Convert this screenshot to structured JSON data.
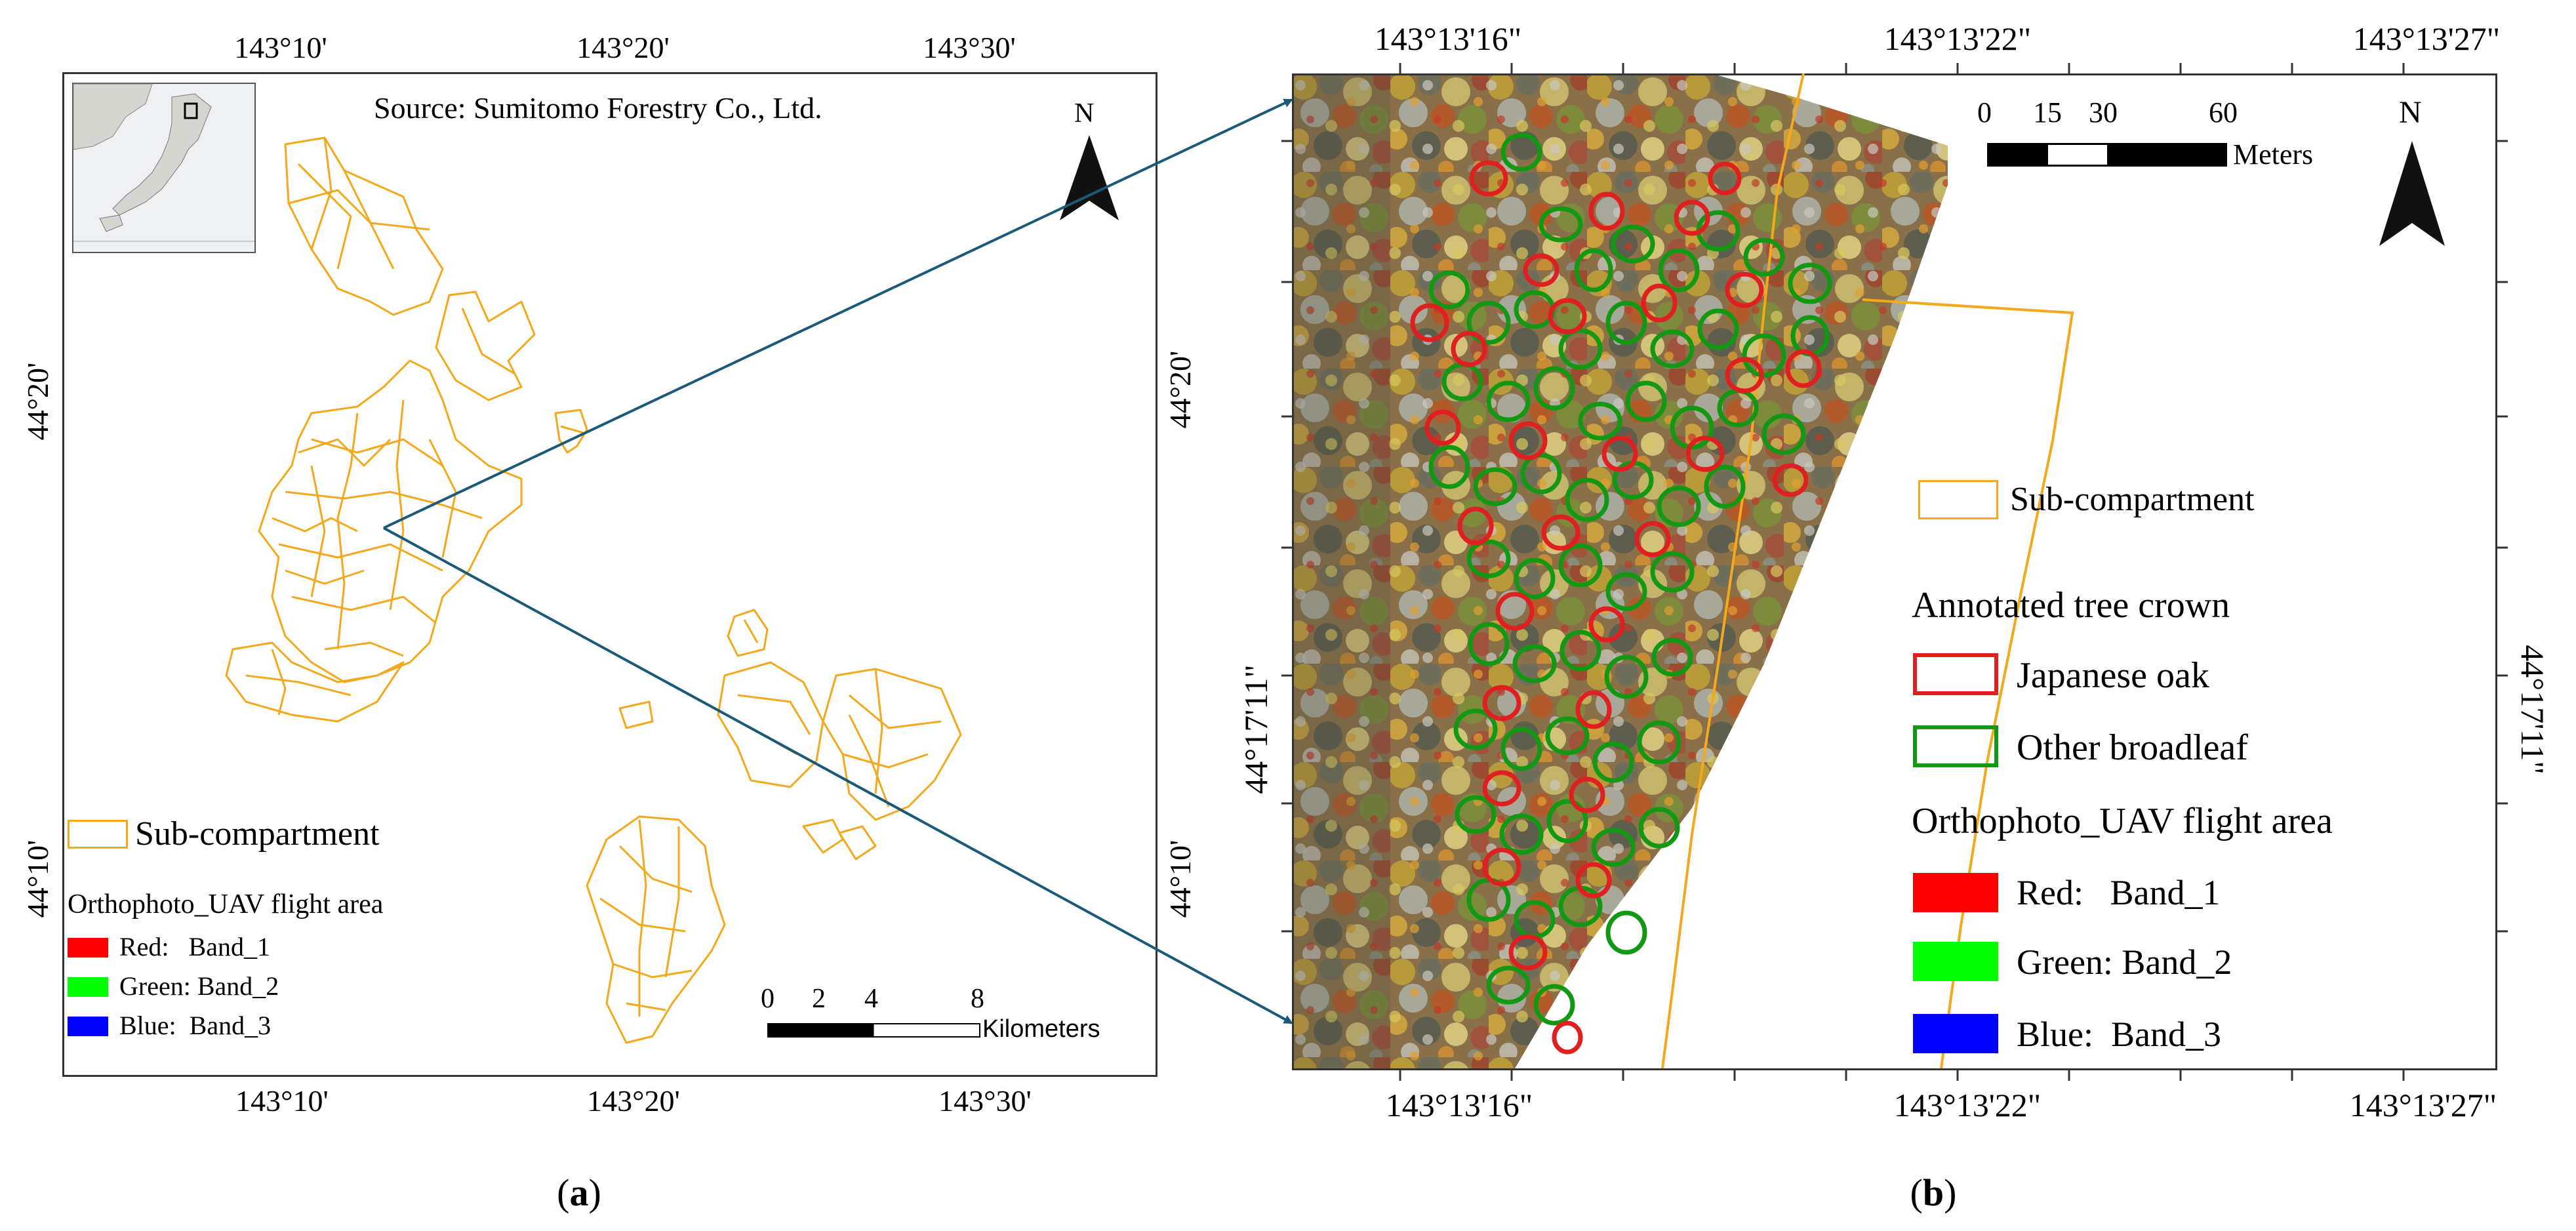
{
  "panel_a": {
    "source": "Source: Sumitomo Forestry Co., Ltd.",
    "north": "N",
    "top_lon_labels": [
      "143°10'",
      "143°20'",
      "143°30'"
    ],
    "bottom_lon_labels": [
      "143°10'",
      "143°20'",
      "143°30'"
    ],
    "left_lat_labels": [
      "44°20'",
      "44°10'"
    ],
    "right_lat_labels": [
      "44°20'",
      "44°10'"
    ],
    "legend": {
      "subcompartment": "Sub-compartment",
      "ortho_title": "Orthophoto_UAV flight area",
      "bands": [
        {
          "label": "Red:   Band_1",
          "color": "#ff0000"
        },
        {
          "label": "Green: Band_2",
          "color": "#00ff00"
        },
        {
          "label": "Blue:  Band_3",
          "color": "#0000ff"
        }
      ]
    },
    "scale": {
      "ticks": [
        "0",
        "2",
        "4",
        "8"
      ],
      "unit": "Kilometers"
    },
    "caption_letter": "a"
  },
  "panel_b": {
    "north": "N",
    "top_lon_labels": [
      "143°13'16\"",
      "143°13'22\"",
      "143°13'27\""
    ],
    "bottom_lon_labels": [
      "143°13'16\"",
      "143°13'22\"",
      "143°13'27\""
    ],
    "left_lat_label": "44°17'11\"",
    "right_lat_label": "44°17'11\"",
    "scale": {
      "ticks": [
        "0",
        "15",
        "30",
        "60"
      ],
      "unit": "Meters"
    },
    "legend": {
      "subcompartment": "Sub-compartment",
      "crown_title": "Annotated tree crown",
      "crowns": [
        {
          "label": "Japanese oak",
          "color": "#e02020"
        },
        {
          "label": "Other broadleaf",
          "color": "#129812"
        }
      ],
      "ortho_title": "Orthophoto_UAV flight area",
      "bands": [
        {
          "label": "Red:   Band_1",
          "color": "#ff0000"
        },
        {
          "label": "Green: Band_2",
          "color": "#00ff00"
        },
        {
          "label": "Blue:  Band_3",
          "color": "#0000ff"
        }
      ]
    },
    "caption_letter": "b"
  },
  "colors": {
    "subcompartment": "#f4a81c",
    "arrow": "#1a5a78",
    "frame": "#333333"
  }
}
